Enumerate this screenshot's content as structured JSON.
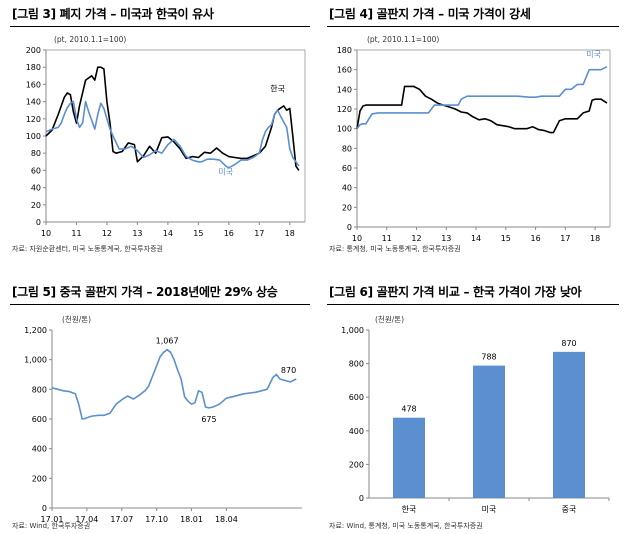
{
  "chart_data": [
    {
      "type": "line",
      "title": "[그림 3] 폐지 가격 – 미국과 한국이 유사",
      "unit_note": "(pt, 2010.1.1=100)",
      "source": "자료: 자원순환센터, 미국 노동통계국, 한국투자증권",
      "xlim": [
        10,
        18.5
      ],
      "ylim": [
        0,
        200
      ],
      "yticks": [
        "0",
        "20",
        "40",
        "60",
        "80",
        "100",
        "120",
        "140",
        "160",
        "180",
        "200"
      ],
      "xticks": [
        "10",
        "11",
        "12",
        "13",
        "14",
        "15",
        "16",
        "17",
        "18"
      ],
      "series": [
        {
          "name": "한국",
          "color": "#000000",
          "x": [
            10,
            10.2,
            10.4,
            10.6,
            10.7,
            10.8,
            10.9,
            11.0,
            11.1,
            11.3,
            11.5,
            11.6,
            11.7,
            11.8,
            11.9,
            12.0,
            12.1,
            12.2,
            12.3,
            12.5,
            12.7,
            12.9,
            13.0,
            13.2,
            13.4,
            13.6,
            13.8,
            14.0,
            14.2,
            14.4,
            14.6,
            14.8,
            15.0,
            15.2,
            15.4,
            15.6,
            15.8,
            16.0,
            16.2,
            16.4,
            16.6,
            16.8,
            17.0,
            17.2,
            17.4,
            17.5,
            17.6,
            17.8,
            17.9,
            18.0,
            18.1,
            18.2,
            18.3
          ],
          "y": [
            100,
            107,
            125,
            145,
            150,
            148,
            128,
            115,
            135,
            165,
            170,
            165,
            180,
            180,
            178,
            140,
            115,
            82,
            80,
            82,
            92,
            90,
            70,
            77,
            88,
            80,
            98,
            99,
            93,
            85,
            74,
            76,
            75,
            81,
            80,
            86,
            80,
            76,
            75,
            74,
            74,
            77,
            80,
            88,
            110,
            125,
            130,
            135,
            130,
            132,
            100,
            65,
            60
          ]
        },
        {
          "name": "미국",
          "color": "#5b8fd0",
          "x": [
            10,
            10.2,
            10.4,
            10.5,
            10.6,
            10.7,
            10.8,
            10.9,
            11.0,
            11.1,
            11.2,
            11.3,
            11.4,
            11.6,
            11.7,
            11.8,
            11.9,
            12.0,
            12.1,
            12.2,
            12.4,
            12.6,
            12.8,
            13.0,
            13.2,
            13.4,
            13.6,
            13.8,
            14.0,
            14.2,
            14.4,
            14.6,
            14.8,
            15.0,
            15.1,
            15.3,
            15.5,
            15.7,
            15.9,
            16.0,
            16.2,
            16.4,
            16.6,
            16.8,
            17.0,
            17.1,
            17.2,
            17.3,
            17.4,
            17.5,
            17.6,
            17.7,
            17.9,
            18.0,
            18.1,
            18.2,
            18.3
          ],
          "y": [
            105,
            108,
            110,
            115,
            125,
            133,
            138,
            140,
            120,
            110,
            115,
            140,
            128,
            108,
            125,
            138,
            132,
            120,
            108,
            100,
            85,
            85,
            88,
            83,
            75,
            78,
            83,
            80,
            90,
            96,
            88,
            76,
            72,
            70,
            70,
            73,
            73,
            72,
            65,
            63,
            67,
            72,
            72,
            75,
            80,
            95,
            105,
            110,
            113,
            125,
            130,
            123,
            110,
            85,
            75,
            70,
            65
          ]
        }
      ],
      "annotations": [
        {
          "text": "한국",
          "x": 17.6,
          "y": 145
        },
        {
          "text": "미국",
          "x": 15.9,
          "y": 48
        }
      ]
    },
    {
      "type": "line",
      "title": "[그림 4] 골판지 가격 – 미국 가격이 강세",
      "unit_note": "(pt, 2010.1.1=100)",
      "source": "자료: 통계청, 미국 노동통계국, 한국투자증권",
      "xlim": [
        10,
        18.5
      ],
      "ylim": [
        0,
        180
      ],
      "yticks": [
        "0",
        "20",
        "40",
        "60",
        "80",
        "100",
        "120",
        "140",
        "160",
        "180"
      ],
      "xticks": [
        "10",
        "11",
        "12",
        "13",
        "14",
        "15",
        "16",
        "17",
        "18"
      ],
      "series": [
        {
          "name": "",
          "color": "#000000",
          "x": [
            10,
            10.1,
            10.2,
            10.3,
            10.5,
            10.8,
            11.0,
            11.3,
            11.5,
            11.6,
            11.7,
            11.9,
            12.1,
            12.3,
            12.5,
            12.7,
            12.9,
            13.1,
            13.3,
            13.5,
            13.7,
            13.9,
            14.1,
            14.3,
            14.5,
            14.7,
            14.9,
            15.1,
            15.3,
            15.5,
            15.7,
            15.9,
            16.1,
            16.3,
            16.5,
            16.6,
            16.8,
            17.0,
            17.2,
            17.4,
            17.6,
            17.8,
            17.9,
            18.0,
            18.2,
            18.4
          ],
          "y": [
            100,
            118,
            123,
            124,
            124,
            124,
            124,
            124,
            124,
            143,
            143,
            143,
            140,
            133,
            130,
            126,
            124,
            122,
            120,
            117,
            116,
            112,
            109,
            110,
            108,
            104,
            103,
            102,
            100,
            100,
            100,
            102,
            99,
            98,
            96,
            96,
            108,
            110,
            110,
            110,
            116,
            118,
            129,
            130,
            130,
            126
          ]
        },
        {
          "name": "미국",
          "color": "#5b8fd0",
          "x": [
            10,
            10.1,
            10.2,
            10.3,
            10.5,
            10.7,
            10.9,
            11.0,
            11.2,
            11.4,
            11.6,
            11.8,
            12.0,
            12.2,
            12.4,
            12.6,
            12.8,
            13.0,
            13.2,
            13.4,
            13.5,
            13.7,
            14.0,
            14.3,
            14.6,
            15.0,
            15.4,
            15.8,
            16.0,
            16.2,
            16.4,
            16.6,
            16.8,
            17.0,
            17.2,
            17.4,
            17.6,
            17.8,
            18.0,
            18.2,
            18.4
          ],
          "y": [
            100,
            104,
            105,
            105,
            115,
            116,
            116,
            116,
            116,
            116,
            116,
            116,
            116,
            116,
            116,
            124,
            124,
            124,
            124,
            124,
            130,
            133,
            133,
            133,
            133,
            133,
            133,
            132,
            132,
            133,
            133,
            133,
            133,
            140,
            140,
            145,
            145,
            160,
            160,
            160,
            163
          ]
        }
      ],
      "annotations": [
        {
          "text": "미국",
          "x": 17.95,
          "y": 167
        }
      ]
    },
    {
      "type": "line",
      "title": "[그림 5] 중국 골판지 가격 – 2018년에만 29% 상승",
      "unit_note": "(천원/톤)",
      "source": "자료: Wind, 한국투자증권",
      "xlim": [
        0,
        21.5
      ],
      "ylim": [
        0,
        1200
      ],
      "yticks": [
        "0",
        "200",
        "400",
        "600",
        "800",
        "1,000",
        "1,200"
      ],
      "xticks": [
        "17.01",
        "17.04",
        "17.07",
        "17.10",
        "18.01",
        "18.04"
      ],
      "series": [
        {
          "name": "",
          "color": "#5b8fd0",
          "x": [
            0,
            0.5,
            1,
            1.5,
            2,
            2.3,
            2.6,
            2.9,
            3.2,
            3.5,
            4,
            4.5,
            5,
            5.5,
            6,
            6.5,
            7,
            7.5,
            8,
            8.3,
            8.6,
            9,
            9.3,
            9.6,
            9.9,
            10.2,
            10.5,
            10.8,
            11.1,
            11.4,
            11.7,
            12,
            12.3,
            12.6,
            12.9,
            13.2,
            13.5,
            13.8,
            14.1,
            14.4,
            14.7,
            15,
            15.5,
            16,
            16.5,
            17,
            17.5,
            18,
            18.5,
            19,
            19.3,
            19.6,
            20,
            20.5,
            21
          ],
          "y": [
            810,
            800,
            790,
            785,
            770,
            700,
            600,
            605,
            615,
            620,
            625,
            625,
            640,
            700,
            730,
            755,
            735,
            760,
            790,
            820,
            880,
            960,
            1020,
            1050,
            1067,
            1050,
            1000,
            930,
            870,
            750,
            720,
            700,
            710,
            790,
            780,
            680,
            675,
            680,
            690,
            700,
            720,
            740,
            750,
            760,
            770,
            775,
            780,
            790,
            800,
            880,
            900,
            870,
            860,
            850,
            870
          ]
        }
      ],
      "annotations": [
        {
          "text": "1,067",
          "x": 9.9,
          "y": 1067
        },
        {
          "text": "675",
          "x": 13.5,
          "y": 675
        },
        {
          "text": "870",
          "x": 21,
          "y": 870
        }
      ]
    },
    {
      "type": "bar",
      "title": "[그림 6] 골판지 가격 비교 – 한국 가격이 가장 낮아",
      "unit_note": "(천원/톤)",
      "source": "자료: Wind, 통계청, 미국 노동통계국, 한국투자증권",
      "ylim": [
        0,
        1000
      ],
      "yticks": [
        "0",
        "200",
        "400",
        "600",
        "800",
        "1,000"
      ],
      "categories": [
        "한국",
        "미국",
        "중국"
      ],
      "values": [
        478,
        788,
        870
      ],
      "value_labels": [
        "478",
        "788",
        "870"
      ],
      "bar_color": "#5b8fd0"
    }
  ]
}
